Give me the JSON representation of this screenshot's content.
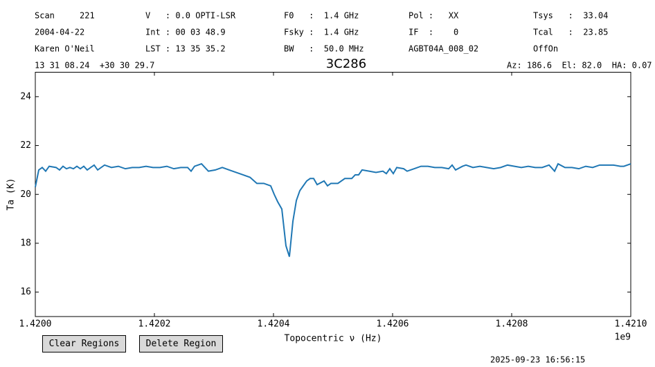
{
  "header": {
    "rows": [
      [
        "Scan     221",
        "V   : 0.0 OPTI-LSR",
        "F0   :  1.4 GHz",
        "Pol :   XX",
        "Tsys   :  33.04"
      ],
      [
        "2004-04-22",
        "Int : 00 03 48.9",
        "Fsky :  1.4 GHz",
        "IF  :    0",
        "Tcal   :  23.85"
      ],
      [
        "Karen O'Neil",
        "LST : 13 35 35.2",
        "BW   :  50.0 MHz",
        "AGBT04A_008_02",
        "OffOn"
      ]
    ],
    "coords": "13 31 08.24  +30 30 29.7",
    "pointing": "Az: 186.6  El: 82.0  HA: 0.07"
  },
  "chart_data": {
    "type": "line",
    "title": "3C286",
    "x_label": "Topocentric ν (Hz)",
    "y_label": "Ta (K)",
    "x_offset_label": "1e9",
    "color": "#1f77b4",
    "xlim": [
      1420000000,
      1421000000
    ],
    "ylim": [
      15,
      25
    ],
    "xticks": [
      {
        "value": 1420000000,
        "label": "1.4200"
      },
      {
        "value": 1420200000,
        "label": "1.4202"
      },
      {
        "value": 1420400000,
        "label": "1.4204"
      },
      {
        "value": 1420600000,
        "label": "1.4206"
      },
      {
        "value": 1420800000,
        "label": "1.4208"
      },
      {
        "value": 1421000000,
        "label": "1.4210"
      }
    ],
    "yticks": [
      16,
      18,
      20,
      22,
      24
    ],
    "x": [
      1420000000,
      1420005800,
      1420011600,
      1420017400,
      1420023300,
      1420034900,
      1420040700,
      1420046500,
      1420052300,
      1420058100,
      1420064000,
      1420069800,
      1420075600,
      1420081400,
      1420087200,
      1420093000,
      1420098800,
      1420104700,
      1420116300,
      1420127900,
      1420139500,
      1420151200,
      1420162800,
      1420174400,
      1420186000,
      1420197700,
      1420209300,
      1420220900,
      1420232600,
      1420244200,
      1420255800,
      1420261600,
      1420267400,
      1420279100,
      1420290700,
      1420302300,
      1420314000,
      1420325600,
      1420337200,
      1420348800,
      1420360500,
      1420372100,
      1420383700,
      1420395300,
      1420401200,
      1420407000,
      1420414000,
      1420420900,
      1420426700,
      1420432600,
      1420438400,
      1420444200,
      1420450000,
      1420455800,
      1420461600,
      1420467400,
      1420473300,
      1420484900,
      1420490700,
      1420496500,
      1420508100,
      1420519800,
      1420531400,
      1420537200,
      1420543000,
      1420548800,
      1420560500,
      1420572100,
      1420583700,
      1420589500,
      1420595300,
      1420601200,
      1420607000,
      1420618600,
      1420624400,
      1420636000,
      1420647700,
      1420659300,
      1420670900,
      1420682600,
      1420694200,
      1420700000,
      1420705800,
      1420717400,
      1420723300,
      1420734900,
      1420746500,
      1420758100,
      1420769800,
      1420781400,
      1420793000,
      1420804700,
      1420816300,
      1420827900,
      1420839500,
      1420851200,
      1420862800,
      1420872100,
      1420877900,
      1420889500,
      1420901200,
      1420912800,
      1420924400,
      1420936000,
      1420947700,
      1420959300,
      1420970900,
      1420982600,
      1420988400,
      1421000000
    ],
    "values": [
      20.3,
      21.0,
      21.1,
      20.95,
      21.15,
      21.1,
      21.0,
      21.15,
      21.05,
      21.1,
      21.05,
      21.15,
      21.05,
      21.15,
      21.0,
      21.1,
      21.2,
      21.0,
      21.2,
      21.1,
      21.15,
      21.05,
      21.1,
      21.1,
      21.15,
      21.1,
      21.1,
      21.15,
      21.05,
      21.1,
      21.1,
      20.95,
      21.15,
      21.25,
      20.95,
      21.0,
      21.1,
      21.0,
      20.9,
      20.8,
      20.7,
      20.45,
      20.45,
      20.35,
      20.0,
      19.7,
      19.4,
      17.9,
      17.45,
      18.9,
      19.75,
      20.15,
      20.35,
      20.55,
      20.65,
      20.65,
      20.4,
      20.55,
      20.35,
      20.45,
      20.45,
      20.65,
      20.65,
      20.8,
      20.8,
      21.0,
      20.95,
      20.9,
      20.95,
      20.85,
      21.05,
      20.85,
      21.1,
      21.05,
      20.95,
      21.05,
      21.15,
      21.15,
      21.1,
      21.1,
      21.05,
      21.2,
      21.0,
      21.15,
      21.2,
      21.1,
      21.15,
      21.1,
      21.05,
      21.1,
      21.2,
      21.15,
      21.1,
      21.15,
      21.1,
      21.1,
      21.2,
      20.95,
      21.25,
      21.1,
      21.1,
      21.05,
      21.15,
      21.1,
      21.2,
      21.2,
      21.2,
      21.15,
      21.15,
      21.25
    ]
  },
  "buttons": [
    "Clear Regions",
    "Delete Region"
  ],
  "timestamp": "2025-09-23 16:56:15"
}
